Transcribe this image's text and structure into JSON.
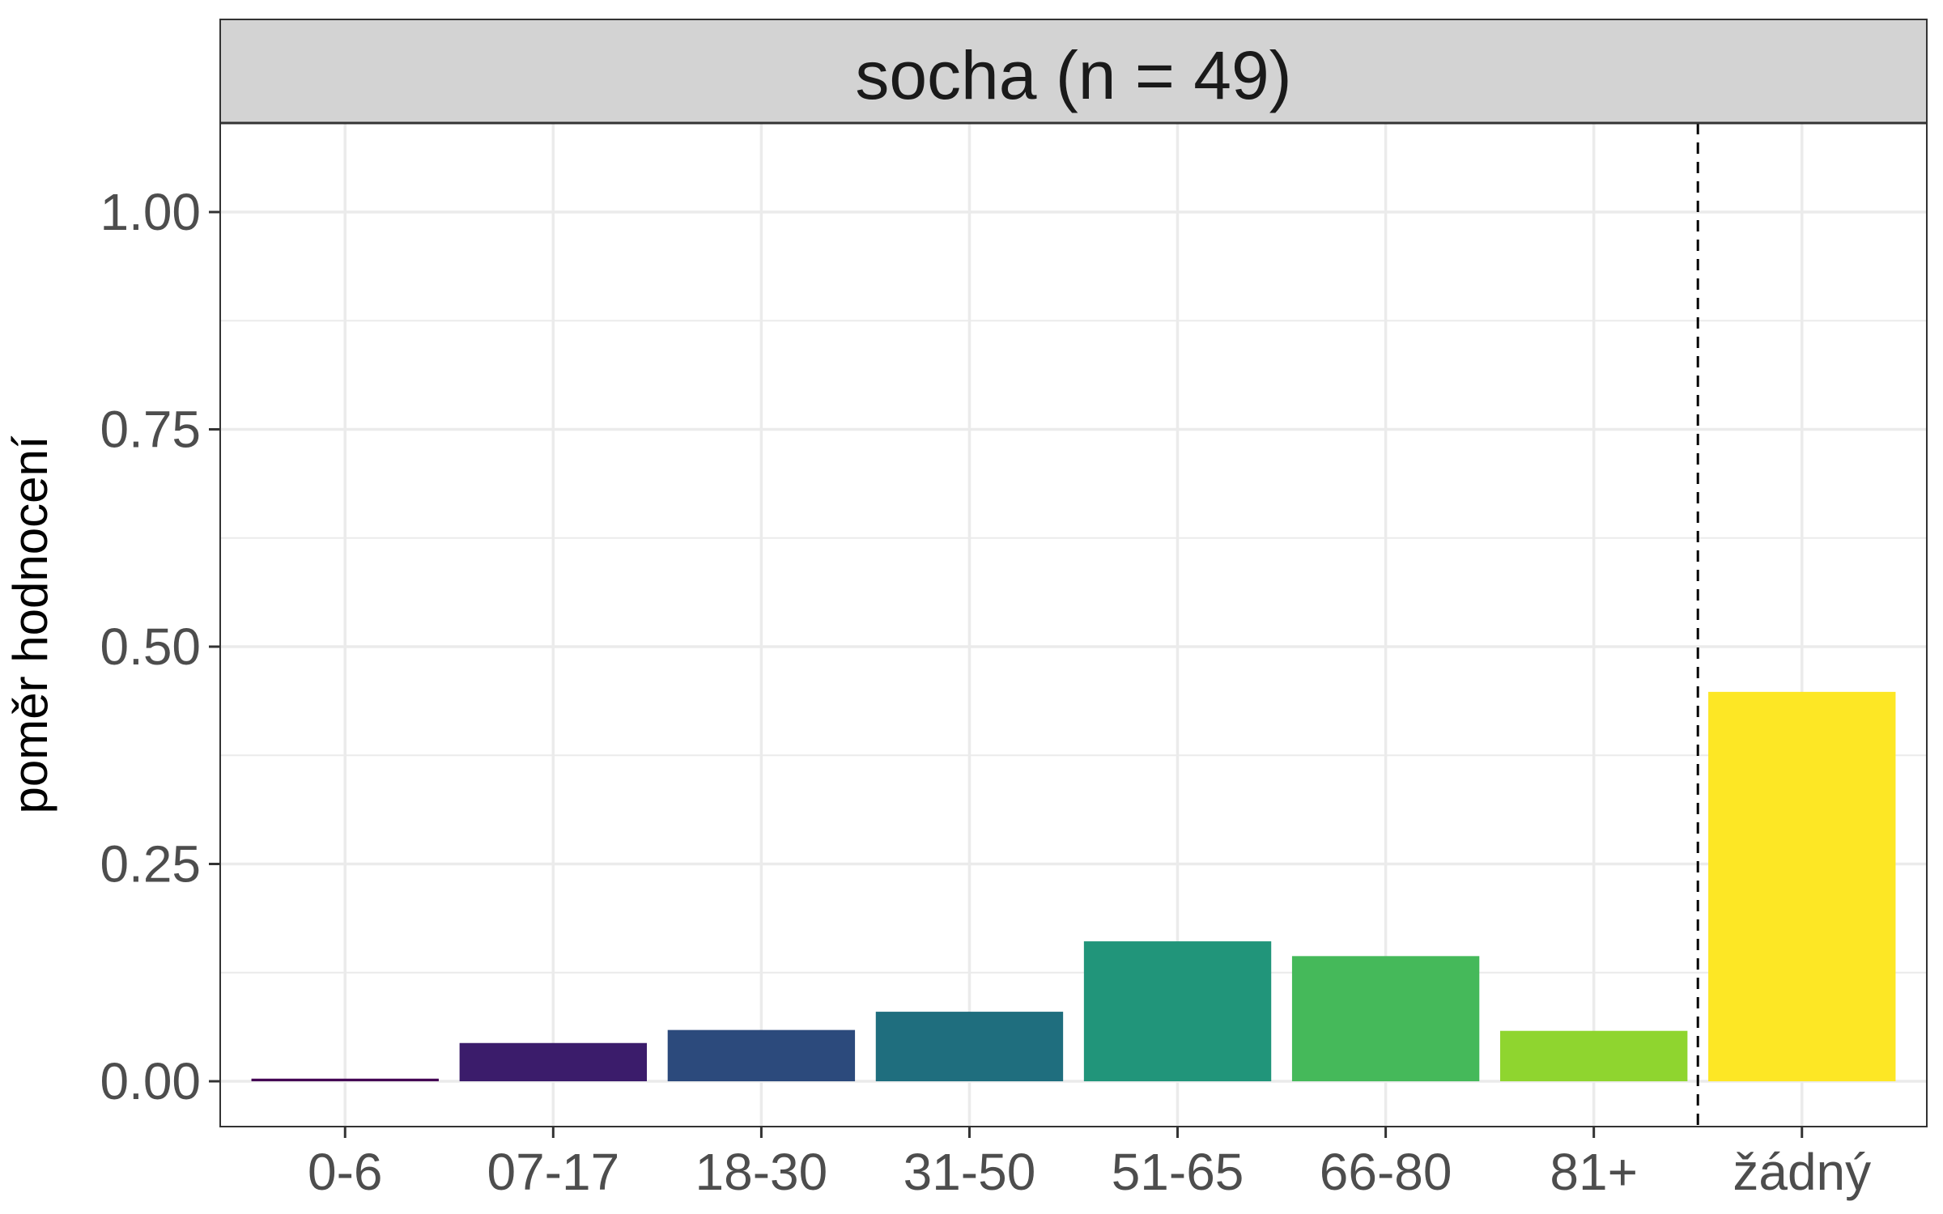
{
  "chart_data": {
    "type": "bar",
    "title": "socha (n = 49)",
    "xlabel": "",
    "ylabel": "poměr hodnocení",
    "categories": [
      "0-6",
      "07-17",
      "18-30",
      "31-50",
      "51-65",
      "66-80",
      "81+",
      "žádný"
    ],
    "values": [
      0.003,
      0.044,
      0.059,
      0.08,
      0.161,
      0.144,
      0.058,
      0.448
    ],
    "colors": [
      "#440154",
      "#3B1C6B",
      "#2C4A7C",
      "#1F6E7E",
      "#21957A",
      "#45B95A",
      "#8FD52F",
      "#FDE725"
    ],
    "ylim": [
      -0.05,
      1.1
    ],
    "yticks": [
      0.0,
      0.25,
      0.5,
      0.75,
      1.0
    ],
    "ytick_labels": [
      "0.00",
      "0.25",
      "0.50",
      "0.75",
      "1.00"
    ],
    "reference_line": {
      "between": [
        "81+",
        "žádný"
      ],
      "style": "dashed"
    },
    "grid": true,
    "legend": "none"
  }
}
